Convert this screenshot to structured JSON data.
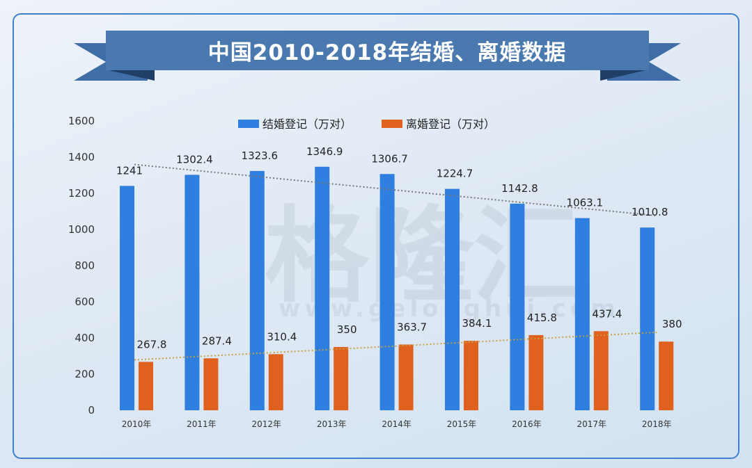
{
  "chart_data": {
    "type": "bar",
    "title": "中国2010-2018年结婚、离婚数据",
    "categories": [
      "2010年",
      "2011年",
      "2012年",
      "2013年",
      "2014年",
      "2015年",
      "2016年",
      "2017年",
      "2018年"
    ],
    "series": [
      {
        "name": "结婚登记（万对）",
        "color": "#2f7fe0",
        "values": [
          1241,
          1302.4,
          1323.6,
          1346.9,
          1306.7,
          1224.7,
          1142.8,
          1063.1,
          1010.8
        ],
        "labels": [
          "1241",
          "1302.4",
          "1323.6",
          "1346.9",
          "1306.7",
          "1224.7",
          "1142.8",
          "1063.1",
          "1010.8"
        ],
        "trendline": "linear"
      },
      {
        "name": "离婚登记（万对）",
        "color": "#e0601e",
        "values": [
          267.8,
          287.4,
          310.4,
          350,
          363.7,
          384.1,
          415.8,
          437.4,
          380
        ],
        "labels": [
          "267.8",
          "287.4",
          "310.4",
          "350",
          "363.7",
          "384.1",
          "415.8",
          "437.4",
          "380"
        ],
        "trendline": "linear"
      }
    ],
    "ylim": [
      0,
      1600
    ],
    "yticks": [
      "0",
      "200",
      "400",
      "600",
      "800",
      "1000",
      "1200",
      "1400",
      "1600"
    ],
    "legend": "top-center",
    "grid": false
  },
  "watermark": "格隆汇 www.gelonghui.com",
  "colors": {
    "banner": "#4a79b0",
    "banner_dark": "#2f5b8f",
    "frame": "#3f7fd0"
  }
}
